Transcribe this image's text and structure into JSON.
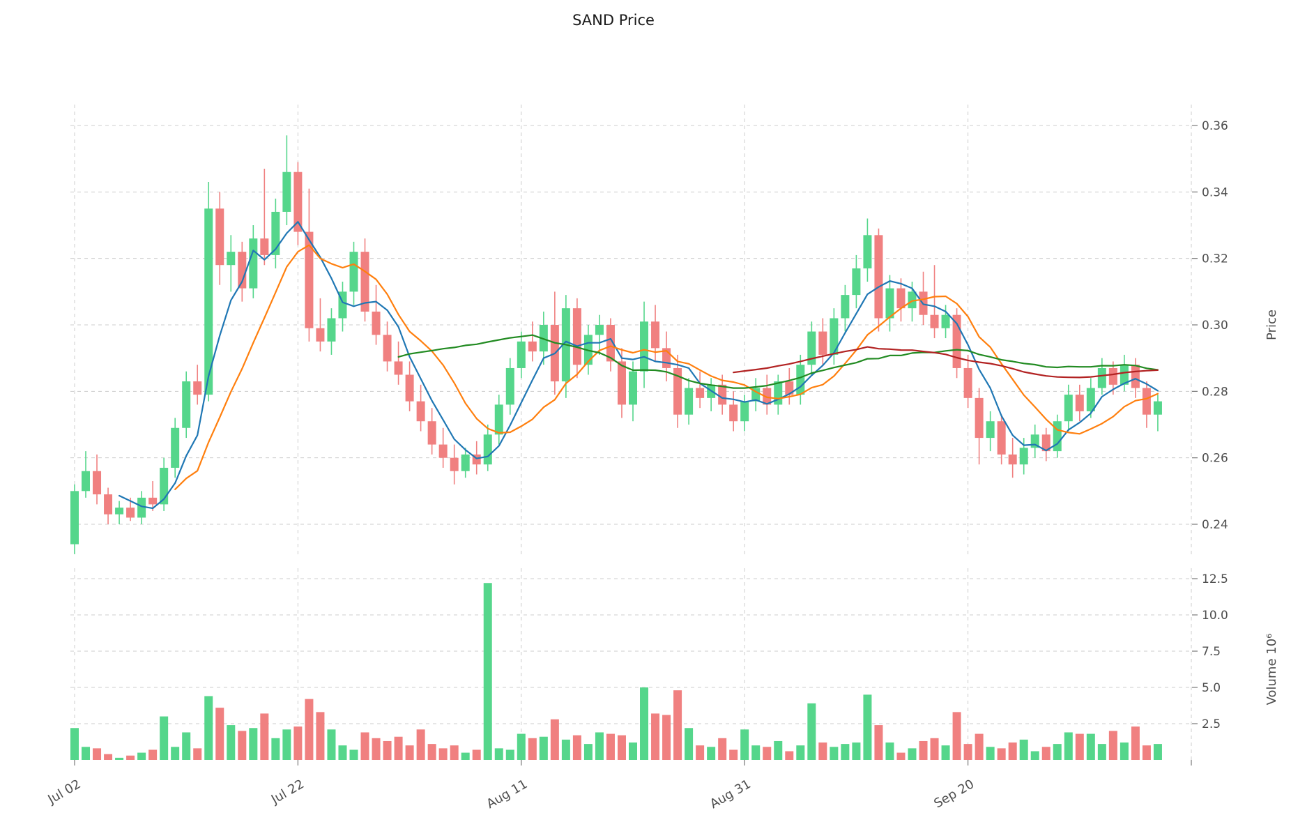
{
  "chart_data": {
    "type": "candlestick",
    "title": "SAND Price",
    "ylabel": "Price",
    "volume_ylabel": "Volume  10⁶",
    "legend_position": "none",
    "grid": true,
    "price_range": [
      0.24,
      0.36
    ],
    "volume_range_millions": [
      0,
      12.5
    ],
    "price_ticks": [
      0.24,
      0.26,
      0.28,
      0.3,
      0.32,
      0.34,
      0.36
    ],
    "volume_ticks_millions": [
      2.5,
      5.0,
      7.5,
      10.0,
      12.5
    ],
    "x_ticks": [
      {
        "index": 0,
        "label": "Jul 02"
      },
      {
        "index": 20,
        "label": "Jul 22"
      },
      {
        "index": 40,
        "label": "Aug 11"
      },
      {
        "index": 60,
        "label": "Aug 31"
      },
      {
        "index": 80,
        "label": "Sep 20"
      },
      {
        "index": 100,
        "label": ""
      }
    ],
    "moving_average_periods": [
      5,
      10,
      30,
      60
    ],
    "dates": [
      "Jul 02",
      "Jul 03",
      "Jul 04",
      "Jul 05",
      "Jul 06",
      "Jul 07",
      "Jul 08",
      "Jul 09",
      "Jul 10",
      "Jul 11",
      "Jul 12",
      "Jul 13",
      "Jul 14",
      "Jul 15",
      "Jul 16",
      "Jul 17",
      "Jul 18",
      "Jul 19",
      "Jul 20",
      "Jul 21",
      "Jul 22",
      "Jul 23",
      "Jul 24",
      "Jul 25",
      "Jul 26",
      "Jul 27",
      "Jul 28",
      "Jul 29",
      "Jul 30",
      "Jul 31",
      "Aug 01",
      "Aug 02",
      "Aug 03",
      "Aug 04",
      "Aug 05",
      "Aug 06",
      "Aug 07",
      "Aug 08",
      "Aug 09",
      "Aug 10",
      "Aug 11",
      "Aug 12",
      "Aug 13",
      "Aug 14",
      "Aug 15",
      "Aug 16",
      "Aug 17",
      "Aug 18",
      "Aug 19",
      "Aug 20",
      "Aug 21",
      "Aug 22",
      "Aug 23",
      "Aug 24",
      "Aug 25",
      "Aug 26",
      "Aug 27",
      "Aug 28",
      "Aug 29",
      "Aug 30",
      "Aug 31",
      "Sep 01",
      "Sep 02",
      "Sep 03",
      "Sep 04",
      "Sep 05",
      "Sep 06",
      "Sep 07",
      "Sep 08",
      "Sep 09",
      "Sep 10",
      "Sep 11",
      "Sep 12",
      "Sep 13",
      "Sep 14",
      "Sep 15",
      "Sep 16",
      "Sep 17",
      "Sep 18",
      "Sep 19",
      "Sep 20",
      "Sep 21",
      "Sep 22",
      "Sep 23",
      "Sep 24",
      "Sep 25",
      "Sep 26",
      "Sep 27",
      "Sep 28",
      "Sep 29",
      "Sep 30",
      "Oct 01",
      "Oct 02",
      "Oct 03",
      "Oct 04",
      "Oct 05",
      "Oct 06",
      "Oct 07"
    ],
    "ohlc": [
      [
        0.234,
        0.252,
        0.231,
        0.25
      ],
      [
        0.25,
        0.262,
        0.248,
        0.256
      ],
      [
        0.256,
        0.261,
        0.246,
        0.249
      ],
      [
        0.249,
        0.251,
        0.24,
        0.243
      ],
      [
        0.243,
        0.247,
        0.24,
        0.245
      ],
      [
        0.245,
        0.248,
        0.241,
        0.242
      ],
      [
        0.242,
        0.25,
        0.24,
        0.248
      ],
      [
        0.248,
        0.253,
        0.244,
        0.246
      ],
      [
        0.246,
        0.26,
        0.244,
        0.257
      ],
      [
        0.257,
        0.272,
        0.254,
        0.269
      ],
      [
        0.269,
        0.286,
        0.266,
        0.283
      ],
      [
        0.283,
        0.288,
        0.276,
        0.279
      ],
      [
        0.279,
        0.343,
        0.277,
        0.335
      ],
      [
        0.335,
        0.34,
        0.312,
        0.318
      ],
      [
        0.318,
        0.327,
        0.31,
        0.322
      ],
      [
        0.322,
        0.325,
        0.307,
        0.311
      ],
      [
        0.311,
        0.33,
        0.308,
        0.326
      ],
      [
        0.326,
        0.347,
        0.318,
        0.321
      ],
      [
        0.321,
        0.338,
        0.317,
        0.334
      ],
      [
        0.334,
        0.357,
        0.33,
        0.346
      ],
      [
        0.346,
        0.349,
        0.324,
        0.328
      ],
      [
        0.328,
        0.341,
        0.295,
        0.299
      ],
      [
        0.299,
        0.308,
        0.292,
        0.295
      ],
      [
        0.295,
        0.305,
        0.291,
        0.302
      ],
      [
        0.302,
        0.313,
        0.298,
        0.31
      ],
      [
        0.31,
        0.325,
        0.306,
        0.322
      ],
      [
        0.322,
        0.326,
        0.301,
        0.304
      ],
      [
        0.304,
        0.312,
        0.294,
        0.297
      ],
      [
        0.297,
        0.301,
        0.286,
        0.289
      ],
      [
        0.289,
        0.295,
        0.282,
        0.285
      ],
      [
        0.285,
        0.289,
        0.274,
        0.277
      ],
      [
        0.277,
        0.282,
        0.268,
        0.271
      ],
      [
        0.271,
        0.275,
        0.261,
        0.264
      ],
      [
        0.264,
        0.269,
        0.257,
        0.26
      ],
      [
        0.26,
        0.264,
        0.252,
        0.256
      ],
      [
        0.256,
        0.263,
        0.254,
        0.261
      ],
      [
        0.261,
        0.265,
        0.255,
        0.258
      ],
      [
        0.258,
        0.27,
        0.256,
        0.267
      ],
      [
        0.267,
        0.279,
        0.264,
        0.276
      ],
      [
        0.276,
        0.29,
        0.273,
        0.287
      ],
      [
        0.287,
        0.298,
        0.284,
        0.295
      ],
      [
        0.295,
        0.301,
        0.289,
        0.292
      ],
      [
        0.292,
        0.304,
        0.288,
        0.3
      ],
      [
        0.3,
        0.31,
        0.279,
        0.283
      ],
      [
        0.283,
        0.309,
        0.278,
        0.305
      ],
      [
        0.305,
        0.308,
        0.284,
        0.288
      ],
      [
        0.288,
        0.3,
        0.285,
        0.297
      ],
      [
        0.297,
        0.303,
        0.291,
        0.3
      ],
      [
        0.3,
        0.302,
        0.286,
        0.289
      ],
      [
        0.289,
        0.293,
        0.272,
        0.276
      ],
      [
        0.276,
        0.289,
        0.271,
        0.286
      ],
      [
        0.286,
        0.307,
        0.281,
        0.301
      ],
      [
        0.301,
        0.306,
        0.289,
        0.293
      ],
      [
        0.293,
        0.298,
        0.283,
        0.287
      ],
      [
        0.287,
        0.291,
        0.269,
        0.273
      ],
      [
        0.273,
        0.284,
        0.27,
        0.281
      ],
      [
        0.281,
        0.286,
        0.275,
        0.278
      ],
      [
        0.278,
        0.284,
        0.274,
        0.282
      ],
      [
        0.282,
        0.285,
        0.273,
        0.276
      ],
      [
        0.276,
        0.28,
        0.268,
        0.271
      ],
      [
        0.271,
        0.279,
        0.268,
        0.277
      ],
      [
        0.277,
        0.284,
        0.274,
        0.281
      ],
      [
        0.281,
        0.285,
        0.273,
        0.276
      ],
      [
        0.276,
        0.285,
        0.273,
        0.283
      ],
      [
        0.283,
        0.287,
        0.276,
        0.279
      ],
      [
        0.279,
        0.291,
        0.276,
        0.288
      ],
      [
        0.288,
        0.301,
        0.285,
        0.298
      ],
      [
        0.298,
        0.302,
        0.288,
        0.291
      ],
      [
        0.291,
        0.305,
        0.288,
        0.302
      ],
      [
        0.302,
        0.312,
        0.298,
        0.309
      ],
      [
        0.309,
        0.321,
        0.305,
        0.317
      ],
      [
        0.317,
        0.332,
        0.313,
        0.327
      ],
      [
        0.327,
        0.329,
        0.298,
        0.302
      ],
      [
        0.302,
        0.315,
        0.298,
        0.311
      ],
      [
        0.311,
        0.314,
        0.301,
        0.305
      ],
      [
        0.305,
        0.313,
        0.301,
        0.31
      ],
      [
        0.31,
        0.316,
        0.3,
        0.303
      ],
      [
        0.303,
        0.318,
        0.296,
        0.299
      ],
      [
        0.299,
        0.306,
        0.296,
        0.303
      ],
      [
        0.303,
        0.305,
        0.284,
        0.287
      ],
      [
        0.287,
        0.291,
        0.275,
        0.278
      ],
      [
        0.278,
        0.281,
        0.258,
        0.266
      ],
      [
        0.266,
        0.274,
        0.262,
        0.271
      ],
      [
        0.271,
        0.273,
        0.258,
        0.261
      ],
      [
        0.261,
        0.266,
        0.254,
        0.258
      ],
      [
        0.258,
        0.266,
        0.255,
        0.263
      ],
      [
        0.263,
        0.27,
        0.26,
        0.267
      ],
      [
        0.267,
        0.269,
        0.259,
        0.262
      ],
      [
        0.262,
        0.273,
        0.26,
        0.271
      ],
      [
        0.271,
        0.282,
        0.268,
        0.279
      ],
      [
        0.279,
        0.282,
        0.271,
        0.274
      ],
      [
        0.274,
        0.284,
        0.272,
        0.281
      ],
      [
        0.281,
        0.29,
        0.279,
        0.287
      ],
      [
        0.287,
        0.289,
        0.279,
        0.282
      ],
      [
        0.282,
        0.291,
        0.28,
        0.288
      ],
      [
        0.288,
        0.29,
        0.278,
        0.281
      ],
      [
        0.281,
        0.283,
        0.269,
        0.273
      ],
      [
        0.273,
        0.279,
        0.268,
        0.277
      ]
    ],
    "volume_millions": [
      2.2,
      0.9,
      0.8,
      0.4,
      0.15,
      0.3,
      0.5,
      0.7,
      3.0,
      0.9,
      1.9,
      0.8,
      4.4,
      3.6,
      2.4,
      2.0,
      2.2,
      3.2,
      1.5,
      2.1,
      2.3,
      4.2,
      3.3,
      2.1,
      1.0,
      0.7,
      1.9,
      1.5,
      1.3,
      1.6,
      1.0,
      2.1,
      1.1,
      0.8,
      1.0,
      0.5,
      0.7,
      12.2,
      0.8,
      0.7,
      1.8,
      1.5,
      1.6,
      2.8,
      1.4,
      1.7,
      1.1,
      1.9,
      1.8,
      1.7,
      1.2,
      5.0,
      3.2,
      3.1,
      4.8,
      2.2,
      1.0,
      0.9,
      1.5,
      0.7,
      2.1,
      1.0,
      0.9,
      1.3,
      0.6,
      1.0,
      3.9,
      1.2,
      0.9,
      1.1,
      1.2,
      4.5,
      2.4,
      1.2,
      0.5,
      0.8,
      1.3,
      1.5,
      1.0,
      3.3,
      1.1,
      1.8,
      0.9,
      0.8,
      1.2,
      1.4,
      0.6,
      0.9,
      1.1,
      1.9,
      1.8,
      1.8,
      1.1,
      2.0,
      1.2,
      2.3,
      1.0,
      1.1
    ]
  },
  "colors": {
    "up": "#55d68b",
    "down": "#f08080",
    "ma_lines": [
      {
        "period": 5,
        "color": "#1f77b4"
      },
      {
        "period": 10,
        "color": "#ff7f0e"
      },
      {
        "period": 30,
        "color": "#228b22"
      },
      {
        "period": 60,
        "color": "#b22222"
      }
    ],
    "grid": "#cccccc",
    "tick_text": "#4d4d4d",
    "title_text": "#1a1a1a",
    "background": "#ffffff"
  }
}
